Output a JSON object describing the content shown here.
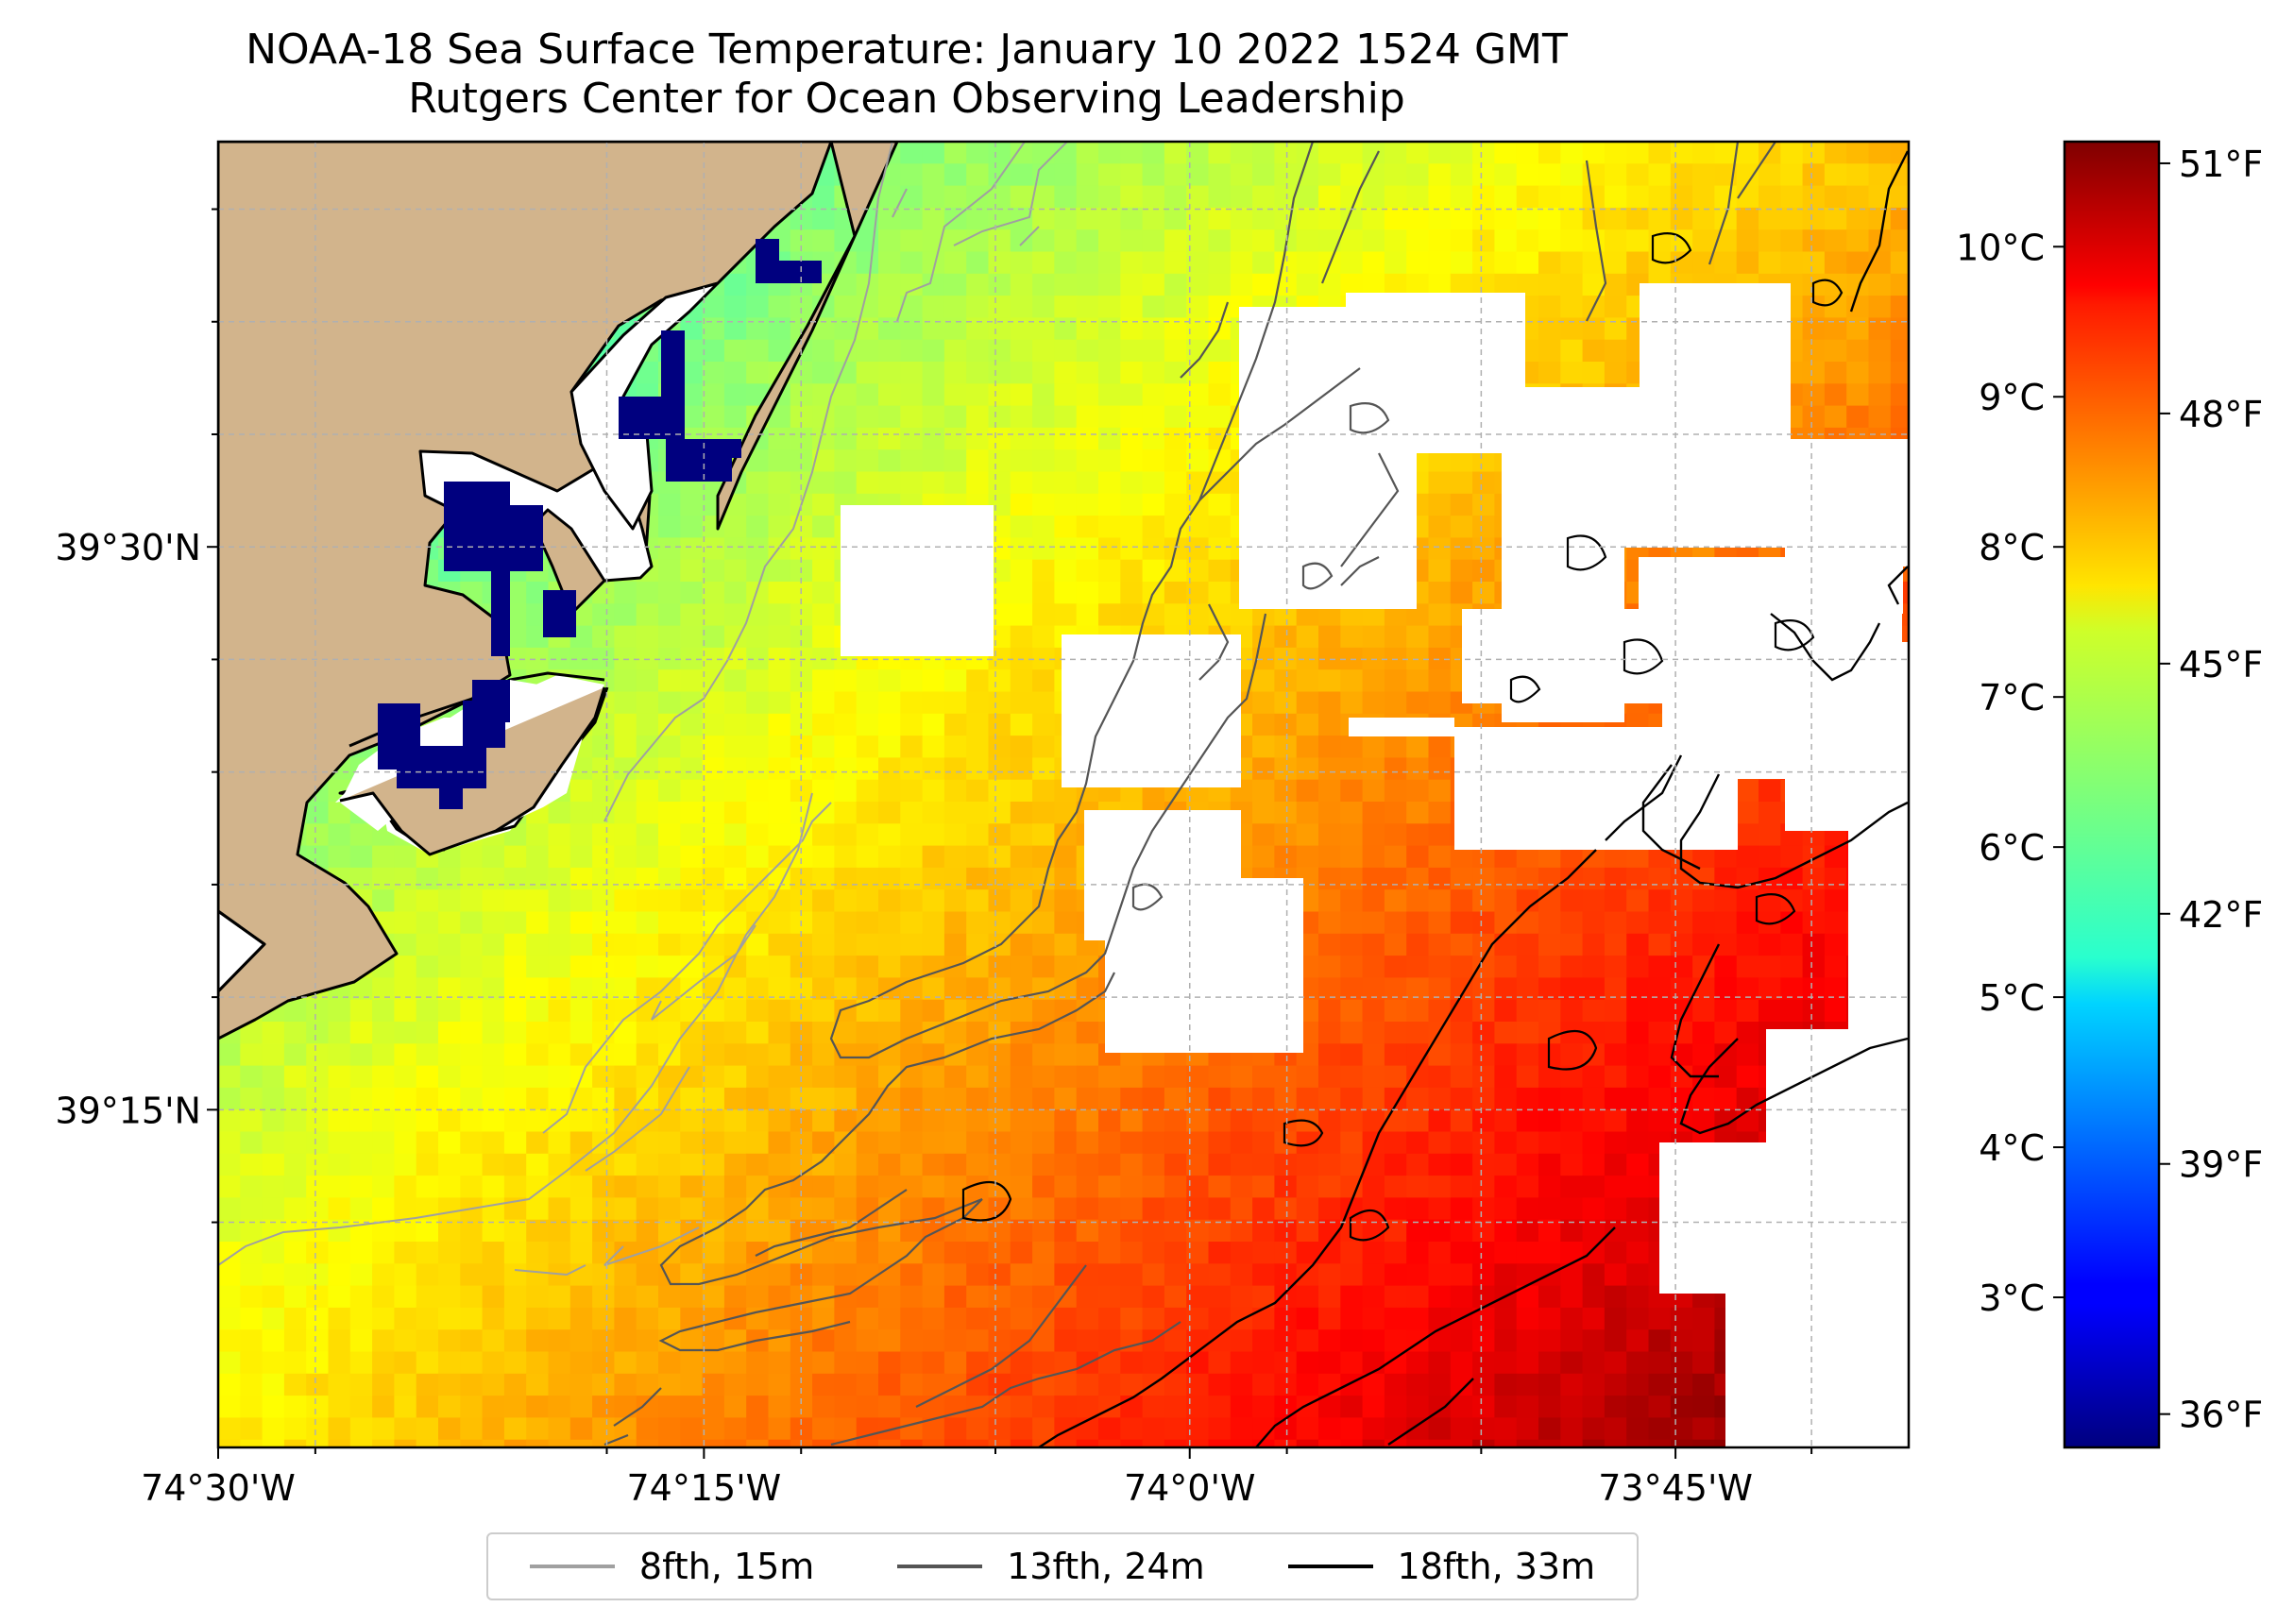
{
  "title": "NOAA-18 Sea Surface Temperature: January 10 2022 1524 GMT",
  "subtitle": "Rutgers Center for Ocean Observing Leadership",
  "map": {
    "lon_range": [
      -74.5,
      -73.63
    ],
    "lat_range": [
      39.1,
      39.68
    ],
    "lat_ticks": [
      {
        "value": 39.5,
        "label": "39°30'N"
      },
      {
        "value": 39.25,
        "label": "39°15'N"
      }
    ],
    "lon_ticks": [
      {
        "value": -74.5,
        "label": "74°30'W"
      },
      {
        "value": -74.25,
        "label": "74°15'W"
      },
      {
        "value": -74.0,
        "label": "74°0'W"
      },
      {
        "value": -73.75,
        "label": "73°45'W"
      }
    ],
    "gridlines": true,
    "land_color": "#d2b48c",
    "coastline_color": "#000000"
  },
  "colorbar": {
    "colormap": "jet",
    "celsius_range": [
      2.0,
      10.7
    ],
    "celsius_ticks": [
      "10°C",
      "9°C",
      "8°C",
      "7°C",
      "6°C",
      "5°C",
      "4°C",
      "3°C"
    ],
    "fahrenheit_ticks": [
      "51°F",
      "48°F",
      "45°F",
      "42°F",
      "39°F",
      "36°F"
    ]
  },
  "legend": {
    "items": [
      {
        "label": "8fth, 15m",
        "color": "#a0a0a0"
      },
      {
        "label": "13fth, 24m",
        "color": "#555555"
      },
      {
        "label": "18fth, 33m",
        "color": "#000000"
      }
    ]
  }
}
